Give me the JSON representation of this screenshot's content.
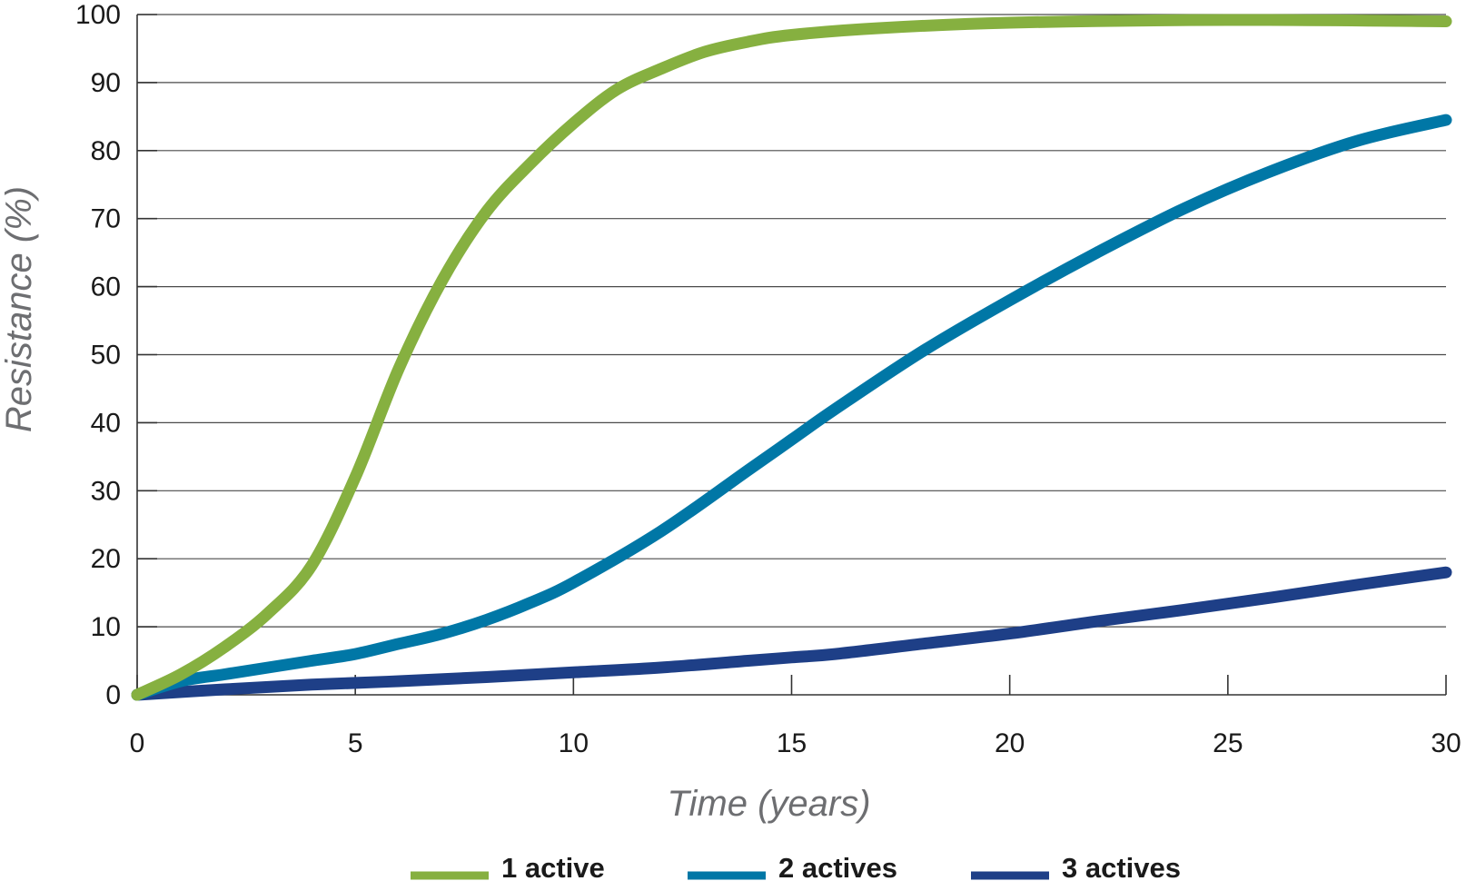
{
  "chart_data": {
    "type": "line",
    "title": "",
    "xlabel": "Time (years)",
    "ylabel": "Resistance (%)",
    "xlim": [
      0,
      30
    ],
    "ylim": [
      0,
      100
    ],
    "xticks": [
      "0",
      "5",
      "10",
      "15",
      "20",
      "25",
      "30"
    ],
    "yticks": [
      "0",
      "10",
      "20",
      "30",
      "40",
      "50",
      "60",
      "70",
      "80",
      "90",
      "100"
    ],
    "grid": "horizontal",
    "legend_position": "bottom",
    "series": [
      {
        "name": "1 active",
        "color": "#86b040",
        "x": [
          0,
          1,
          2,
          3,
          4,
          5,
          6,
          7,
          8,
          9,
          10,
          11,
          12,
          13,
          14,
          15,
          17,
          20,
          25,
          30
        ],
        "y": [
          0,
          3,
          7,
          12,
          19,
          32,
          48,
          61,
          71,
          78,
          84,
          89,
          92,
          94.5,
          96,
          97,
          98,
          98.8,
          99.2,
          99
        ]
      },
      {
        "name": "2 actives",
        "color": "#0077a6",
        "x": [
          0,
          1,
          2,
          3,
          4,
          5,
          6,
          7,
          8,
          9,
          10,
          12,
          14,
          15,
          16,
          18,
          20,
          22,
          24,
          26,
          28,
          30
        ],
        "y": [
          0,
          2,
          3,
          4,
          5,
          6,
          7.5,
          9,
          11,
          13.5,
          16.5,
          24,
          33,
          37.5,
          42,
          50.5,
          58,
          65,
          71.5,
          77,
          81.5,
          84.5
        ]
      },
      {
        "name": "3 actives",
        "color": "#1e3f87",
        "x": [
          0,
          2,
          4,
          6,
          8,
          10,
          12,
          14,
          15,
          16,
          18,
          20,
          22,
          24,
          26,
          28,
          30
        ],
        "y": [
          0,
          0.8,
          1.5,
          2,
          2.6,
          3.3,
          4,
          5,
          5.5,
          6,
          7.5,
          9,
          10.8,
          12.5,
          14.3,
          16.2,
          18
        ]
      }
    ]
  }
}
